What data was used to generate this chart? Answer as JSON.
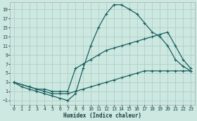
{
  "xlabel": "Humidex (Indice chaleur)",
  "bg_color": "#cce8e0",
  "line_color": "#1a6060",
  "grid_color": "#b0d0c8",
  "xlim": [
    -0.5,
    23.5
  ],
  "ylim": [
    -2.0,
    20.5
  ],
  "xticks": [
    0,
    1,
    2,
    3,
    4,
    5,
    6,
    7,
    8,
    9,
    10,
    11,
    12,
    13,
    14,
    15,
    16,
    17,
    18,
    19,
    20,
    21,
    22,
    23
  ],
  "yticks": [
    -1,
    1,
    3,
    5,
    7,
    9,
    11,
    13,
    15,
    17,
    19
  ],
  "line1_x": [
    0,
    1,
    2,
    3,
    4,
    5,
    6,
    7,
    8,
    9,
    10,
    11,
    12,
    13,
    14,
    15,
    16,
    17,
    18,
    19,
    20,
    21,
    22,
    23
  ],
  "line1_y": [
    3,
    2,
    1.5,
    1,
    0.5,
    0,
    -0.5,
    -1,
    0.5,
    6,
    11,
    15,
    18,
    20,
    20,
    19,
    18,
    16,
    14,
    13,
    11,
    8,
    6.5,
    5.5
  ],
  "line2_x": [
    0,
    2,
    3,
    4,
    5,
    6,
    7,
    8,
    9,
    10,
    11,
    12,
    13,
    14,
    15,
    16,
    17,
    18,
    19,
    20,
    21,
    22,
    23
  ],
  "line2_y": [
    3,
    2,
    1.5,
    1.5,
    1,
    1,
    1,
    6,
    7,
    8,
    9,
    10,
    10.5,
    11,
    11.5,
    12,
    12.5,
    13,
    13.5,
    14,
    11,
    8,
    6
  ],
  "line3_x": [
    0,
    2,
    3,
    4,
    5,
    6,
    7,
    8,
    9,
    10,
    11,
    12,
    13,
    14,
    15,
    16,
    17,
    18,
    19,
    20,
    21,
    22,
    23
  ],
  "line3_y": [
    3,
    2,
    1.5,
    1,
    0.5,
    0.5,
    0.5,
    1,
    1.5,
    2,
    2.5,
    3,
    3.5,
    4,
    4.5,
    5,
    5.5,
    5.5,
    5.5,
    5.5,
    5.5,
    5.5,
    5.5
  ]
}
